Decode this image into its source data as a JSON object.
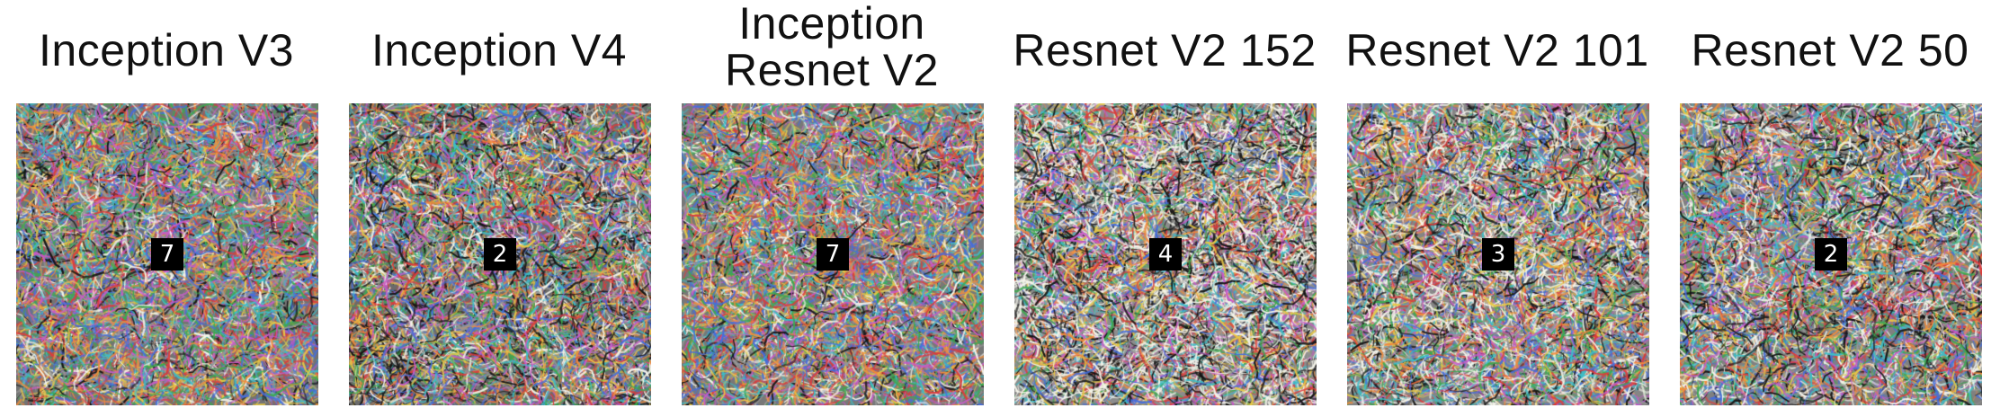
{
  "panels": [
    {
      "title_lines": [
        "Inception V3"
      ],
      "digit": "7",
      "noise": {
        "seed": 11,
        "bright": 0.45,
        "contrast": 0.95,
        "white": 0.1,
        "black": 0.1
      }
    },
    {
      "title_lines": [
        "Inception V4"
      ],
      "digit": "2",
      "noise": {
        "seed": 23,
        "bright": 0.42,
        "contrast": 1.0,
        "white": 0.14,
        "black": 0.14
      }
    },
    {
      "title_lines": [
        "Inception",
        "Resnet V2"
      ],
      "digit": "7",
      "noise": {
        "seed": 37,
        "bright": 0.47,
        "contrast": 0.9,
        "white": 0.1,
        "black": 0.08
      }
    },
    {
      "title_lines": [
        "Resnet V2 152"
      ],
      "digit": "4",
      "noise": {
        "seed": 41,
        "bright": 0.55,
        "contrast": 1.1,
        "white": 0.28,
        "black": 0.18
      }
    },
    {
      "title_lines": [
        "Resnet V2 101"
      ],
      "digit": "3",
      "noise": {
        "seed": 53,
        "bright": 0.52,
        "contrast": 1.05,
        "white": 0.22,
        "black": 0.14
      }
    },
    {
      "title_lines": [
        "Resnet V2 50"
      ],
      "digit": "2",
      "noise": {
        "seed": 67,
        "bright": 0.5,
        "contrast": 1.0,
        "white": 0.18,
        "black": 0.14
      }
    }
  ]
}
